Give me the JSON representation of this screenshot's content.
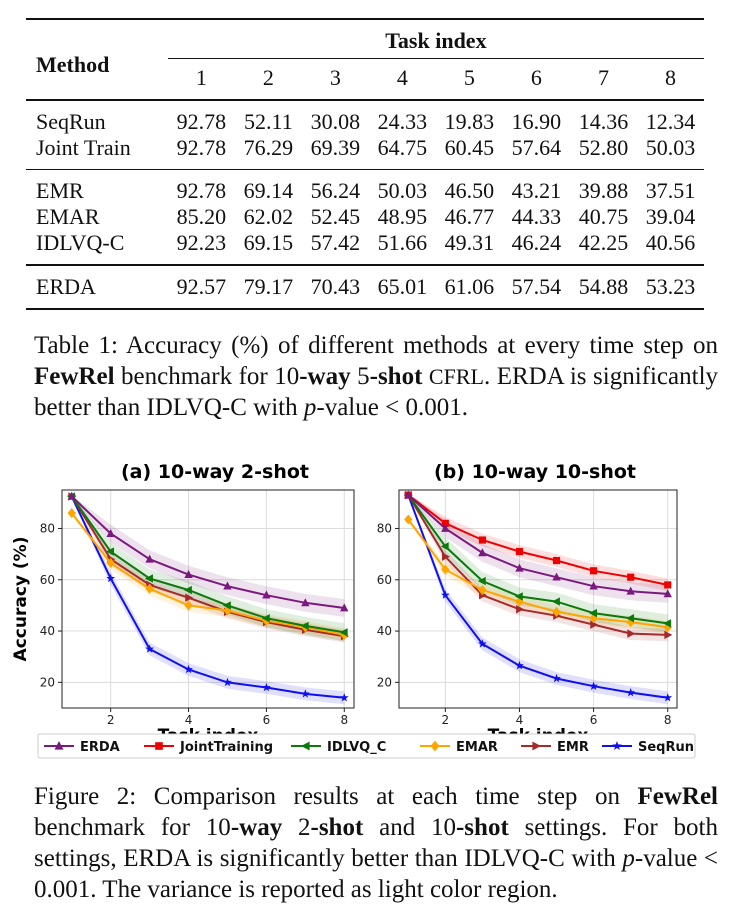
{
  "table": {
    "method_header": "Method",
    "task_header": "Task index",
    "task_columns": [
      "1",
      "2",
      "3",
      "4",
      "5",
      "6",
      "7",
      "8"
    ],
    "groups": [
      [
        {
          "method": "SeqRun",
          "values": [
            "92.78",
            "52.11",
            "30.08",
            "24.33",
            "19.83",
            "16.90",
            "14.36",
            "12.34"
          ],
          "bold": [
            false,
            false,
            false,
            false,
            false,
            false,
            false,
            false
          ]
        },
        {
          "method": "Joint Train",
          "values": [
            "92.78",
            "76.29",
            "69.39",
            "64.75",
            "60.45",
            "57.64",
            "52.80",
            "50.03"
          ],
          "bold": [
            true,
            false,
            false,
            false,
            false,
            true,
            false,
            false
          ]
        }
      ],
      [
        {
          "method": "EMR",
          "values": [
            "92.78",
            "69.14",
            "56.24",
            "50.03",
            "46.50",
            "43.21",
            "39.88",
            "37.51"
          ],
          "bold": [
            false,
            false,
            false,
            false,
            false,
            false,
            false,
            false
          ]
        },
        {
          "method": "EMAR",
          "values": [
            "85.20",
            "62.02",
            "52.45",
            "48.95",
            "46.77",
            "44.33",
            "40.75",
            "39.04"
          ],
          "bold": [
            false,
            false,
            false,
            false,
            false,
            false,
            false,
            false
          ]
        },
        {
          "method": "IDLVQ-C",
          "values": [
            "92.23",
            "69.15",
            "57.42",
            "51.66",
            "49.31",
            "46.24",
            "42.25",
            "40.56"
          ],
          "bold": [
            false,
            false,
            false,
            false,
            false,
            false,
            false,
            false
          ]
        }
      ],
      [
        {
          "method": "ERDA",
          "method_bold": true,
          "values": [
            "92.57",
            "79.17",
            "70.43",
            "65.01",
            "61.06",
            "57.54",
            "54.88",
            "53.23"
          ],
          "bold": [
            false,
            true,
            true,
            true,
            true,
            true,
            true,
            true
          ]
        }
      ]
    ]
  },
  "table_caption": {
    "label": "Table 1:",
    "t1": " Accuracy (%) of different methods at every time step on ",
    "fewrel": "FewRel",
    "t2": " benchmark for 10",
    "way": "-way",
    "t3": " 5",
    "shot": "-shot",
    "t4": " ",
    "cfrl": "CFRL",
    "t5": ". ERDA is significantly better than IDLVQ-C with ",
    "p": "p",
    "t6": "-value < 0.001."
  },
  "figure_caption": {
    "label": "Figure 2:",
    "t1": " Comparison results at each time step on ",
    "fewrel": "FewRel",
    "t2": " benchmark for 10",
    "way": "-way",
    "t3": " 2",
    "shot2": "-shot",
    "t4": " and 10",
    "shot10": "-shot",
    "t5": " settings. For both settings, ERDA is significantly better than IDLVQ-C with ",
    "p": "p",
    "t6": "-value < 0.001. The variance is reported as light color region."
  },
  "legend": [
    {
      "name": "ERDA",
      "color": "#7b1a7e",
      "marker": "triangle-up"
    },
    {
      "name": "JointTraining",
      "color": "#ee0000",
      "marker": "square"
    },
    {
      "name": "IDLVQ_C",
      "color": "#0b7a0b",
      "marker": "triangle-left"
    },
    {
      "name": "EMAR",
      "color": "#ffa500",
      "marker": "diamond"
    },
    {
      "name": "EMR",
      "color": "#a52a2a",
      "marker": "triangle-right"
    },
    {
      "name": "SeqRun",
      "color": "#1010ee",
      "marker": "star"
    }
  ],
  "chart_data": [
    {
      "type": "line",
      "title": "(a) 10-way 2-shot",
      "xlabel": "Task index",
      "ylabel": "Accuracy (%)",
      "x": [
        1,
        2,
        3,
        4,
        5,
        6,
        7,
        8
      ],
      "xticks": [
        2,
        4,
        6,
        8
      ],
      "yticks": [
        20,
        40,
        60,
        80
      ],
      "xlim": [
        0.75,
        8.25
      ],
      "ylim": [
        10,
        95
      ],
      "grid": true,
      "variance_shading": true,
      "series": [
        {
          "name": "ERDA",
          "values": [
            92.5,
            78,
            68,
            62,
            57.5,
            54,
            51,
            49
          ]
        },
        {
          "name": "IDLVQ_C",
          "values": [
            92.5,
            71,
            60.5,
            56,
            50,
            45,
            42,
            39.5
          ]
        },
        {
          "name": "EMAR",
          "values": [
            86,
            66.5,
            56.5,
            50,
            48,
            44,
            41.5,
            38.5
          ]
        },
        {
          "name": "EMR",
          "values": [
            92.5,
            68,
            58,
            53,
            47.5,
            43.5,
            40.5,
            38
          ]
        },
        {
          "name": "SeqRun",
          "values": [
            92.5,
            60.5,
            33,
            25,
            20,
            18,
            15.5,
            14
          ]
        }
      ]
    },
    {
      "type": "line",
      "title": "(b) 10-way 10-shot",
      "xlabel": "Task index",
      "ylabel": "",
      "x": [
        1,
        2,
        3,
        4,
        5,
        6,
        7,
        8
      ],
      "xticks": [
        2,
        4,
        6,
        8
      ],
      "yticks": [
        20,
        40,
        60,
        80
      ],
      "xlim": [
        0.75,
        8.25
      ],
      "ylim": [
        10,
        95
      ],
      "grid": true,
      "variance_shading": true,
      "series": [
        {
          "name": "ERDA",
          "values": [
            93,
            80,
            70.5,
            64.5,
            61,
            57.5,
            55.5,
            54.5
          ]
        },
        {
          "name": "JointTraining",
          "values": [
            93,
            82,
            75.5,
            71,
            67.5,
            63.5,
            61,
            58
          ]
        },
        {
          "name": "IDLVQ_C",
          "values": [
            93,
            73,
            59.5,
            53.5,
            51.5,
            47,
            45,
            43
          ]
        },
        {
          "name": "EMAR",
          "values": [
            83.5,
            64,
            56,
            51.5,
            47.5,
            45,
            43.5,
            41.5
          ]
        },
        {
          "name": "EMR",
          "values": [
            93,
            69,
            54,
            48.5,
            46,
            42.5,
            39,
            38.5
          ]
        },
        {
          "name": "SeqRun",
          "values": [
            93,
            54,
            35,
            26.5,
            21.5,
            18.5,
            16,
            14
          ]
        }
      ]
    }
  ]
}
